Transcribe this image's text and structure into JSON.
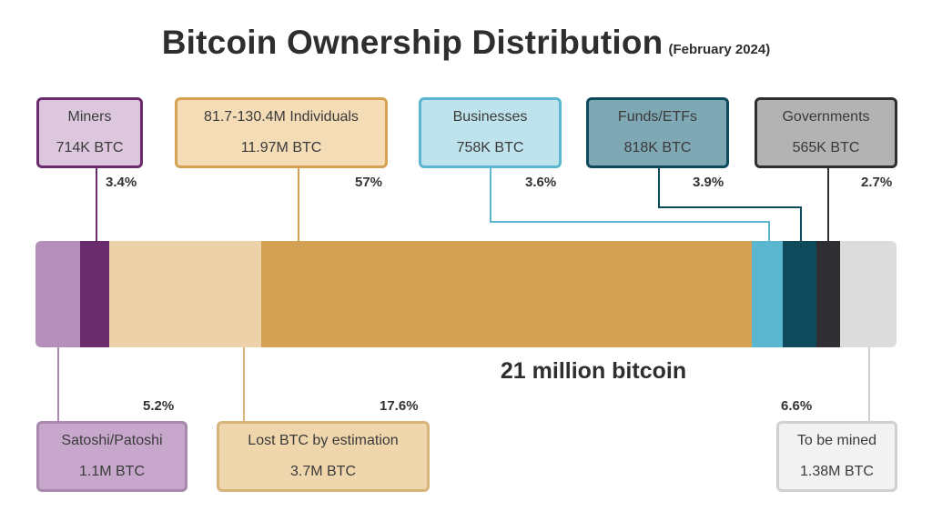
{
  "chart_data": {
    "type": "stacked-bar",
    "title": "Bitcoin Ownership Distribution",
    "subtitle": "(February 2024)",
    "total_label": "21 million bitcoin",
    "segments": [
      {
        "name": "Satoshi/Patoshi",
        "value_label": "1.1M BTC",
        "percent": 5.2,
        "percent_label": "5.2%",
        "color": "#b48fba",
        "label_pos": "bottom"
      },
      {
        "name": "Miners",
        "value_label": "714K BTC",
        "percent": 3.4,
        "percent_label": "3.4%",
        "color": "#6b2c6e",
        "label_pos": "top"
      },
      {
        "name": "Lost BTC by estimation",
        "value_label": "3.7M BTC",
        "percent": 17.6,
        "percent_label": "17.6%",
        "color": "#edd1a8",
        "label_pos": "bottom"
      },
      {
        "name": "81.7-130.4M Individuals",
        "value_label": "11.97M BTC",
        "percent": 57,
        "percent_label": "57%",
        "color": "#d5a253",
        "label_pos": "top"
      },
      {
        "name": "Businesses",
        "value_label": "758K BTC",
        "percent": 3.6,
        "percent_label": "3.6%",
        "color": "#5bb7cf",
        "label_pos": "top"
      },
      {
        "name": "Funds/ETFs",
        "value_label": "818K BTC",
        "percent": 3.9,
        "percent_label": "3.9%",
        "color": "#0f4a5c",
        "label_pos": "top"
      },
      {
        "name": "Governments",
        "value_label": "565K BTC",
        "percent": 2.7,
        "percent_label": "2.7%",
        "color": "#2f2f33",
        "label_pos": "top"
      },
      {
        "name": "To be mined",
        "value_label": "1.38M BTC",
        "percent": 6.6,
        "percent_label": "6.6%",
        "color": "#dcdcdc",
        "label_pos": "bottom"
      }
    ]
  },
  "boxes": {
    "miners": {
      "border": "#6b2c6e",
      "fill": "#dcc7df"
    },
    "individuals": {
      "border": "#d5a253",
      "fill": "#f3dcb6"
    },
    "businesses": {
      "border": "#5bb7cf",
      "fill": "#bfe3ec"
    },
    "funds": {
      "border": "#0f4a5c",
      "fill": "#7fa8b5"
    },
    "governments": {
      "border": "#2f2f33",
      "fill": "#b3b3b3"
    },
    "satoshi": {
      "border": "#a889ad",
      "fill": "#c7a8cc"
    },
    "lost": {
      "border": "#d8b47b",
      "fill": "#f0d6ad"
    },
    "tobemined": {
      "border": "#d0d0d0",
      "fill": "#f2f2f2"
    }
  }
}
